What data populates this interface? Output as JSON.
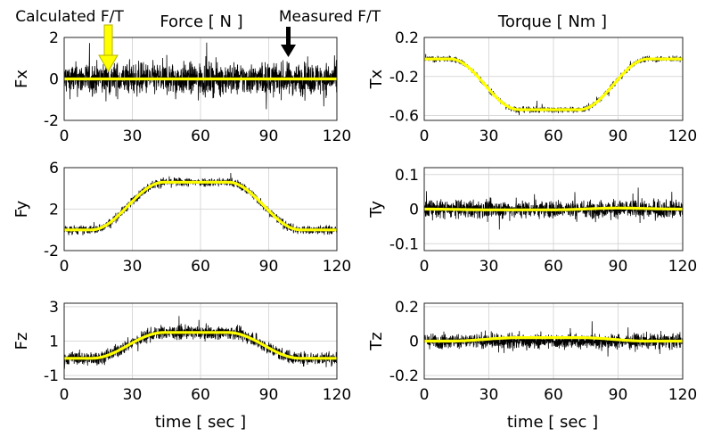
{
  "figure": {
    "title_force": "Force [ N ]",
    "title_torque": "Torque [ Nm ]",
    "annotation_calculated": "Calculated F/T",
    "annotation_measured": "Measured F/T",
    "xlabel": "time [ sec ]",
    "colors": {
      "calculated": "#ffff00",
      "measured": "#000000"
    }
  },
  "chart_data": [
    {
      "type": "line",
      "ylabel": "Fx",
      "xlim": [
        0,
        120
      ],
      "ylim": [
        -2,
        2
      ],
      "xticks": [
        0,
        30,
        60,
        90,
        120
      ],
      "yticks": [
        -2,
        0,
        2
      ],
      "grid": true,
      "series": [
        {
          "name": "Measured F/T",
          "x": [
            0,
            120
          ],
          "values": [
            0,
            0
          ],
          "noise": 0.9
        },
        {
          "name": "Calculated F/T",
          "x": [
            0,
            120
          ],
          "values": [
            0,
            0
          ]
        }
      ]
    },
    {
      "type": "line",
      "ylabel": "Tx",
      "xlim": [
        0,
        120
      ],
      "ylim": [
        -0.65,
        0.2
      ],
      "xticks": [
        0,
        30,
        60,
        90,
        120
      ],
      "yticks": [
        0.2,
        -0.2,
        -0.6
      ],
      "grid": true,
      "series": [
        {
          "name": "Measured F/T",
          "x": [
            0,
            12,
            44,
            72,
            104,
            120
          ],
          "values": [
            -0.02,
            -0.02,
            -0.54,
            -0.54,
            -0.02,
            -0.02
          ],
          "noise": 0.035
        },
        {
          "name": "Calculated F/T",
          "x": [
            0,
            12,
            44,
            72,
            104,
            120
          ],
          "values": [
            -0.02,
            -0.02,
            -0.54,
            -0.54,
            -0.02,
            -0.02
          ]
        }
      ]
    },
    {
      "type": "line",
      "ylabel": "Fy",
      "xlim": [
        0,
        120
      ],
      "ylim": [
        -2,
        6
      ],
      "xticks": [
        0,
        30,
        60,
        90,
        120
      ],
      "yticks": [
        6,
        2,
        -2
      ],
      "grid": true,
      "series": [
        {
          "name": "Measured F/T",
          "x": [
            0,
            12,
            44,
            72,
            104,
            120
          ],
          "values": [
            0,
            0,
            4.6,
            4.6,
            0,
            0
          ],
          "noise": 0.5
        },
        {
          "name": "Calculated F/T",
          "x": [
            0,
            12,
            44,
            72,
            104,
            120
          ],
          "values": [
            0,
            0,
            4.6,
            4.6,
            0,
            0
          ]
        }
      ]
    },
    {
      "type": "line",
      "ylabel": "Ty",
      "xlim": [
        0,
        120
      ],
      "ylim": [
        -0.12,
        0.12
      ],
      "xticks": [
        0,
        30,
        60,
        90,
        120
      ],
      "yticks": [
        0.1,
        0,
        -0.1
      ],
      "grid": true,
      "series": [
        {
          "name": "Measured F/T",
          "x": [
            0,
            120
          ],
          "values": [
            0,
            0
          ],
          "noise": 0.03
        },
        {
          "name": "Calculated F/T",
          "x": [
            0,
            30,
            60,
            90,
            120
          ],
          "values": [
            0,
            -0.002,
            -0.002,
            0.003,
            0
          ]
        }
      ]
    },
    {
      "type": "line",
      "ylabel": "Fz",
      "xlim": [
        0,
        120
      ],
      "ylim": [
        -1.2,
        3.2
      ],
      "xticks": [
        0,
        30,
        60,
        90,
        120
      ],
      "yticks": [
        3,
        1,
        -1
      ],
      "grid": true,
      "series": [
        {
          "name": "Measured F/T",
          "x": [
            0,
            12,
            44,
            72,
            104,
            120
          ],
          "values": [
            0,
            0,
            1.5,
            1.5,
            0,
            0
          ],
          "noise": 0.45
        },
        {
          "name": "Calculated F/T",
          "x": [
            0,
            12,
            44,
            72,
            104,
            120
          ],
          "values": [
            0,
            0,
            1.5,
            1.5,
            0,
            0
          ]
        }
      ]
    },
    {
      "type": "line",
      "ylabel": "Tz",
      "xlim": [
        0,
        120
      ],
      "ylim": [
        -0.22,
        0.22
      ],
      "xticks": [
        0,
        30,
        60,
        90,
        120
      ],
      "yticks": [
        0.2,
        0,
        -0.2
      ],
      "grid": true,
      "series": [
        {
          "name": "Measured F/T",
          "x": [
            0,
            120
          ],
          "values": [
            0,
            0
          ],
          "noise": 0.05
        },
        {
          "name": "Calculated F/T",
          "x": [
            0,
            12,
            44,
            72,
            104,
            120
          ],
          "values": [
            0,
            0,
            0.02,
            0.02,
            0,
            0
          ]
        }
      ]
    }
  ]
}
